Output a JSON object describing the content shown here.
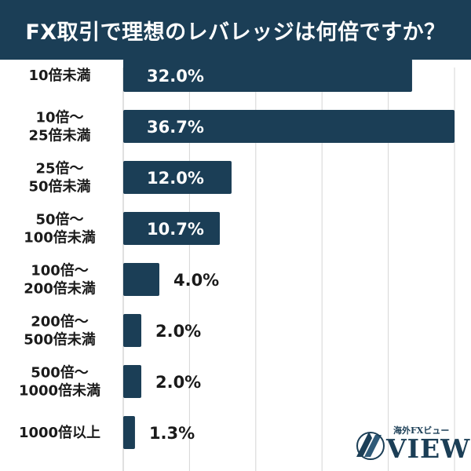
{
  "title": "FX取引で理想のレバレッジは何倍ですか？",
  "chart_data": {
    "type": "bar",
    "orientation": "horizontal",
    "title": "FX取引で理想のレバレッジは何倍ですか？",
    "categories": [
      [
        "10倍未満"
      ],
      [
        "10倍～",
        "25倍未満"
      ],
      [
        "25倍～",
        "50倍未満"
      ],
      [
        "50倍～",
        "100倍未満"
      ],
      [
        "100倍～",
        "200倍未満"
      ],
      [
        "200倍～",
        "500倍未満"
      ],
      [
        "500倍～",
        "1000倍未満"
      ],
      [
        "1000倍以上"
      ]
    ],
    "values": [
      32.0,
      36.7,
      12.0,
      10.7,
      4.0,
      2.0,
      2.0,
      1.3
    ],
    "value_labels": [
      "32.0%",
      "36.7%",
      "12.0%",
      "10.7%",
      "4.0%",
      "2.0%",
      "2.0%",
      "1.3%"
    ],
    "xlim": [
      0,
      36.7
    ],
    "grid": true,
    "bar_color": "#1b3e56",
    "grid_color": "#d6d6d6"
  },
  "logo": {
    "subtitle": "海外FXビュー",
    "name": "VIEW"
  },
  "colors": {
    "header_bg": "#1b3e56",
    "header_text": "#ffffff",
    "bar": "#1b3e56",
    "label_inside": "#ffffff",
    "label_outside": "#1a1a1a"
  }
}
